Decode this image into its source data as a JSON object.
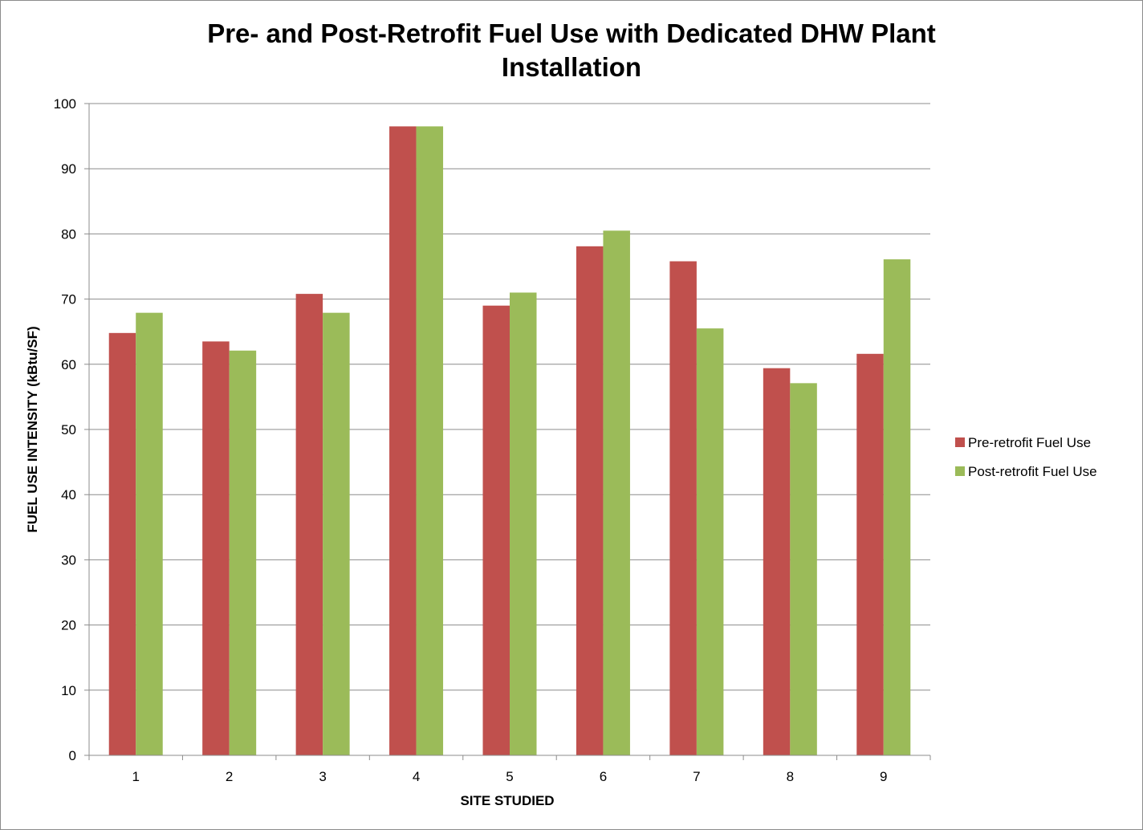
{
  "chart_data": {
    "type": "bar",
    "title_lines": [
      "Pre- and Post-Retrofit Fuel Use with Dedicated DHW Plant",
      "Installation"
    ],
    "xlabel": "SITE STUDIED",
    "ylabel": "FUEL USE INTENSITY (kBtu/SF)",
    "categories": [
      "1",
      "2",
      "3",
      "4",
      "5",
      "6",
      "7",
      "8",
      "9"
    ],
    "series": [
      {
        "name": "Pre-retrofit Fuel Use",
        "color": "#c0504d",
        "values": [
          64.8,
          63.5,
          70.8,
          96.5,
          69.0,
          78.1,
          75.8,
          59.4,
          61.6
        ]
      },
      {
        "name": "Post-retrofit Fuel Use",
        "color": "#9bbb59",
        "values": [
          67.9,
          62.1,
          67.9,
          96.5,
          71.0,
          80.5,
          65.5,
          57.1,
          76.1
        ]
      }
    ],
    "ylim": [
      0,
      100
    ],
    "yticks": [
      0,
      10,
      20,
      30,
      40,
      50,
      60,
      70,
      80,
      90,
      100
    ],
    "grid": true,
    "legend_position": "right"
  }
}
